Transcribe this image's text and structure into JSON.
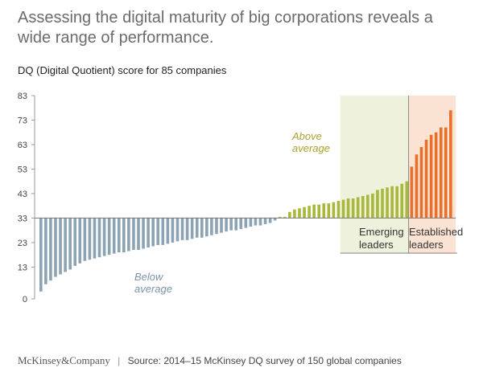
{
  "title": "Assessing the digital maturity of big corporations reveals a wide range of performance.",
  "subtitle": "DQ (Digital Quotient) score for 85 companies",
  "footer": {
    "brand": "McKinsey&Company",
    "source": "Source: 2014–15 McKinsey DQ survey of 150 global companies"
  },
  "chart_data": {
    "type": "bar",
    "baseline": 33,
    "ylim": [
      0,
      83
    ],
    "yticks": [
      0,
      13,
      23,
      33,
      43,
      53,
      63,
      73,
      83
    ],
    "grid": false,
    "colors": {
      "below": "#8ca3b3",
      "above": "#a9b73a",
      "established": "#e8702a",
      "emerging_band": "#eef2dc",
      "established_band": "#fbe3d3",
      "axis": "#999999"
    },
    "values": [
      3,
      6,
      7.5,
      9,
      10,
      11,
      12,
      13.5,
      14.5,
      15.5,
      16,
      16.5,
      17,
      17.5,
      18,
      18.5,
      19,
      19,
      19.5,
      20,
      20,
      20.5,
      21,
      21.5,
      22,
      22,
      22.5,
      23,
      23.5,
      24,
      24,
      24.5,
      25,
      25,
      25.5,
      26,
      26.5,
      27,
      27.5,
      28,
      28,
      28.5,
      29,
      29.5,
      30,
      30,
      30.5,
      31,
      32,
      33.5,
      33.5,
      35.5,
      36.5,
      37,
      37.5,
      38,
      38.5,
      38.5,
      39,
      39,
      39.5,
      40,
      40.5,
      41,
      41,
      41.5,
      42,
      42.5,
      43,
      44.5,
      45,
      45.5,
      46,
      46,
      47,
      48,
      54,
      59,
      62,
      65,
      67,
      68,
      70,
      70,
      77
    ],
    "groups": {
      "below_count": 49,
      "above_count": 27,
      "established_count": 9
    },
    "regions": {
      "emerging_from": 62,
      "established_from": 76
    },
    "annotations": {
      "above": [
        "Above",
        "average"
      ],
      "below": [
        "Below",
        "average"
      ],
      "emerging": [
        "Emerging",
        "leaders"
      ],
      "established": [
        "Established",
        "leaders"
      ]
    }
  }
}
